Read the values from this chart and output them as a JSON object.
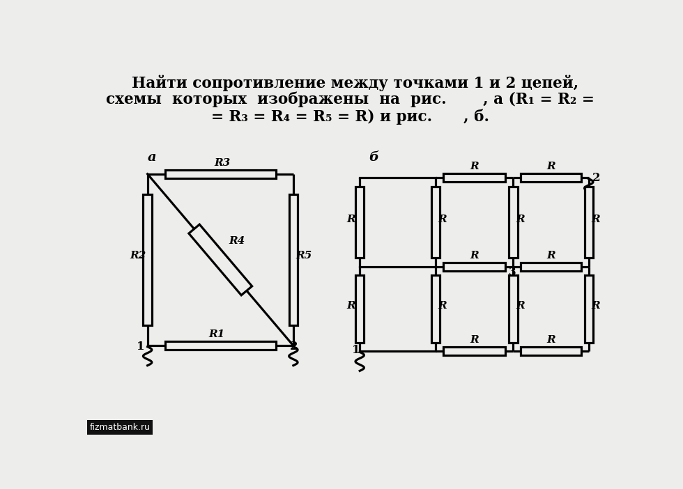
{
  "bg_color": "#ededeb",
  "lw": 2.3,
  "color": "black",
  "label_a": "a",
  "label_b": "б",
  "watermark": "fizmatbank.ru",
  "title_lines": [
    "  Найти сопротивление между точками 1 и 2 цепей,",
    "схемы  которых  изображены  на  рис.       , а (R₁ = R₂ =",
    "= R₃ = R₄ = R₅ = R) и рис.      , б."
  ]
}
